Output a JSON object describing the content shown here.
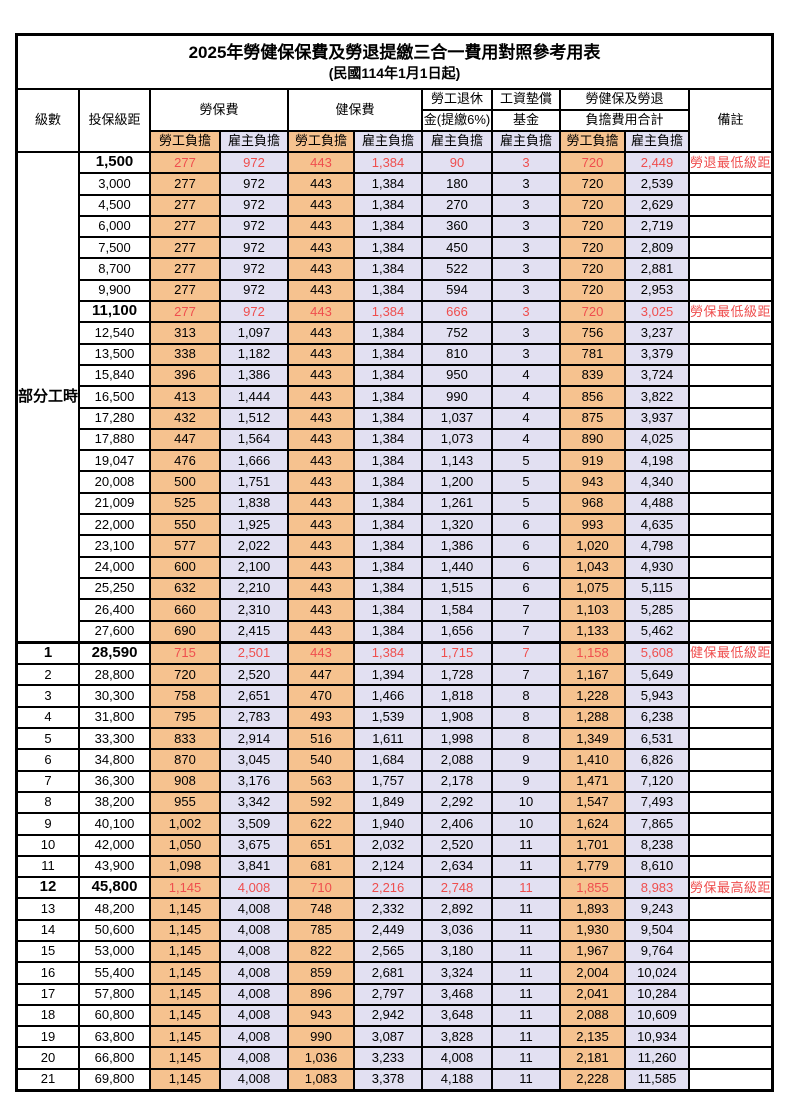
{
  "title": "2025年勞健保保費及勞退提繳三合一費用對照參考用表",
  "subtitle": "(民國114年1月1日起)",
  "colors": {
    "employee_bg": "#F6C28F",
    "employer_bg": "#E2E0F2",
    "highlight_text": "#EF4E4E",
    "border": "#000000",
    "background": "#FFFFFF"
  },
  "header": {
    "level": "級數",
    "bracket": "投保級距",
    "labor_fee": "勞保費",
    "health_fee": "健保費",
    "pension_line1": "勞工退休",
    "pension_line2": "金(提繳6%)",
    "wage_fund_line1": "工資墊償",
    "wage_fund_line2": "基金",
    "total_line1": "勞健保及勞退",
    "total_line2": "負擔費用合計",
    "note": "備註",
    "employee_share": "勞工負擔",
    "employer_share": "雇主負擔"
  },
  "part_time_label": "部分工時",
  "part_time_rowspan": 23,
  "table": {
    "rows": [
      {
        "level": "",
        "amount": "1,500",
        "v": [
          "277",
          "972",
          "443",
          "1,384",
          "90",
          "3",
          "720",
          "2,449"
        ],
        "note": "勞退最低級距",
        "hl": true
      },
      {
        "level": "",
        "amount": "3,000",
        "v": [
          "277",
          "972",
          "443",
          "1,384",
          "180",
          "3",
          "720",
          "2,539"
        ],
        "note": ""
      },
      {
        "level": "",
        "amount": "4,500",
        "v": [
          "277",
          "972",
          "443",
          "1,384",
          "270",
          "3",
          "720",
          "2,629"
        ],
        "note": ""
      },
      {
        "level": "",
        "amount": "6,000",
        "v": [
          "277",
          "972",
          "443",
          "1,384",
          "360",
          "3",
          "720",
          "2,719"
        ],
        "note": ""
      },
      {
        "level": "",
        "amount": "7,500",
        "v": [
          "277",
          "972",
          "443",
          "1,384",
          "450",
          "3",
          "720",
          "2,809"
        ],
        "note": ""
      },
      {
        "level": "",
        "amount": "8,700",
        "v": [
          "277",
          "972",
          "443",
          "1,384",
          "522",
          "3",
          "720",
          "2,881"
        ],
        "note": ""
      },
      {
        "level": "",
        "amount": "9,900",
        "v": [
          "277",
          "972",
          "443",
          "1,384",
          "594",
          "3",
          "720",
          "2,953"
        ],
        "note": ""
      },
      {
        "level": "",
        "amount": "11,100",
        "v": [
          "277",
          "972",
          "443",
          "1,384",
          "666",
          "3",
          "720",
          "3,025"
        ],
        "note": "勞保最低級距",
        "hl": true
      },
      {
        "level": "",
        "amount": "12,540",
        "v": [
          "313",
          "1,097",
          "443",
          "1,384",
          "752",
          "3",
          "756",
          "3,237"
        ],
        "note": ""
      },
      {
        "level": "",
        "amount": "13,500",
        "v": [
          "338",
          "1,182",
          "443",
          "1,384",
          "810",
          "3",
          "781",
          "3,379"
        ],
        "note": ""
      },
      {
        "level": "",
        "amount": "15,840",
        "v": [
          "396",
          "1,386",
          "443",
          "1,384",
          "950",
          "4",
          "839",
          "3,724"
        ],
        "note": ""
      },
      {
        "level": "",
        "amount": "16,500",
        "v": [
          "413",
          "1,444",
          "443",
          "1,384",
          "990",
          "4",
          "856",
          "3,822"
        ],
        "note": ""
      },
      {
        "level": "",
        "amount": "17,280",
        "v": [
          "432",
          "1,512",
          "443",
          "1,384",
          "1,037",
          "4",
          "875",
          "3,937"
        ],
        "note": ""
      },
      {
        "level": "",
        "amount": "17,880",
        "v": [
          "447",
          "1,564",
          "443",
          "1,384",
          "1,073",
          "4",
          "890",
          "4,025"
        ],
        "note": ""
      },
      {
        "level": "",
        "amount": "19,047",
        "v": [
          "476",
          "1,666",
          "443",
          "1,384",
          "1,143",
          "5",
          "919",
          "4,198"
        ],
        "note": ""
      },
      {
        "level": "",
        "amount": "20,008",
        "v": [
          "500",
          "1,751",
          "443",
          "1,384",
          "1,200",
          "5",
          "943",
          "4,340"
        ],
        "note": ""
      },
      {
        "level": "",
        "amount": "21,009",
        "v": [
          "525",
          "1,838",
          "443",
          "1,384",
          "1,261",
          "5",
          "968",
          "4,488"
        ],
        "note": ""
      },
      {
        "level": "",
        "amount": "22,000",
        "v": [
          "550",
          "1,925",
          "443",
          "1,384",
          "1,320",
          "6",
          "993",
          "4,635"
        ],
        "note": ""
      },
      {
        "level": "",
        "amount": "23,100",
        "v": [
          "577",
          "2,022",
          "443",
          "1,384",
          "1,386",
          "6",
          "1,020",
          "4,798"
        ],
        "note": ""
      },
      {
        "level": "",
        "amount": "24,000",
        "v": [
          "600",
          "2,100",
          "443",
          "1,384",
          "1,440",
          "6",
          "1,043",
          "4,930"
        ],
        "note": ""
      },
      {
        "level": "",
        "amount": "25,250",
        "v": [
          "632",
          "2,210",
          "443",
          "1,384",
          "1,515",
          "6",
          "1,075",
          "5,115"
        ],
        "note": ""
      },
      {
        "level": "",
        "amount": "26,400",
        "v": [
          "660",
          "2,310",
          "443",
          "1,384",
          "1,584",
          "7",
          "1,103",
          "5,285"
        ],
        "note": ""
      },
      {
        "level": "",
        "amount": "27,600",
        "v": [
          "690",
          "2,415",
          "443",
          "1,384",
          "1,656",
          "7",
          "1,133",
          "5,462"
        ],
        "note": ""
      },
      {
        "level": "1",
        "amount": "28,590",
        "v": [
          "715",
          "2,501",
          "443",
          "1,384",
          "1,715",
          "7",
          "1,158",
          "5,608"
        ],
        "note": "健保最低級距",
        "hl": true,
        "sect": true
      },
      {
        "level": "2",
        "amount": "28,800",
        "v": [
          "720",
          "2,520",
          "447",
          "1,394",
          "1,728",
          "7",
          "1,167",
          "5,649"
        ],
        "note": ""
      },
      {
        "level": "3",
        "amount": "30,300",
        "v": [
          "758",
          "2,651",
          "470",
          "1,466",
          "1,818",
          "8",
          "1,228",
          "5,943"
        ],
        "note": ""
      },
      {
        "level": "4",
        "amount": "31,800",
        "v": [
          "795",
          "2,783",
          "493",
          "1,539",
          "1,908",
          "8",
          "1,288",
          "6,238"
        ],
        "note": ""
      },
      {
        "level": "5",
        "amount": "33,300",
        "v": [
          "833",
          "2,914",
          "516",
          "1,611",
          "1,998",
          "8",
          "1,349",
          "6,531"
        ],
        "note": ""
      },
      {
        "level": "6",
        "amount": "34,800",
        "v": [
          "870",
          "3,045",
          "540",
          "1,684",
          "2,088",
          "9",
          "1,410",
          "6,826"
        ],
        "note": ""
      },
      {
        "level": "7",
        "amount": "36,300",
        "v": [
          "908",
          "3,176",
          "563",
          "1,757",
          "2,178",
          "9",
          "1,471",
          "7,120"
        ],
        "note": ""
      },
      {
        "level": "8",
        "amount": "38,200",
        "v": [
          "955",
          "3,342",
          "592",
          "1,849",
          "2,292",
          "10",
          "1,547",
          "7,493"
        ],
        "note": ""
      },
      {
        "level": "9",
        "amount": "40,100",
        "v": [
          "1,002",
          "3,509",
          "622",
          "1,940",
          "2,406",
          "10",
          "1,624",
          "7,865"
        ],
        "note": ""
      },
      {
        "level": "10",
        "amount": "42,000",
        "v": [
          "1,050",
          "3,675",
          "651",
          "2,032",
          "2,520",
          "11",
          "1,701",
          "8,238"
        ],
        "note": ""
      },
      {
        "level": "11",
        "amount": "43,900",
        "v": [
          "1,098",
          "3,841",
          "681",
          "2,124",
          "2,634",
          "11",
          "1,779",
          "8,610"
        ],
        "note": ""
      },
      {
        "level": "12",
        "amount": "45,800",
        "v": [
          "1,145",
          "4,008",
          "710",
          "2,216",
          "2,748",
          "11",
          "1,855",
          "8,983"
        ],
        "note": "勞保最高級距",
        "hl": true
      },
      {
        "level": "13",
        "amount": "48,200",
        "v": [
          "1,145",
          "4,008",
          "748",
          "2,332",
          "2,892",
          "11",
          "1,893",
          "9,243"
        ],
        "note": ""
      },
      {
        "level": "14",
        "amount": "50,600",
        "v": [
          "1,145",
          "4,008",
          "785",
          "2,449",
          "3,036",
          "11",
          "1,930",
          "9,504"
        ],
        "note": ""
      },
      {
        "level": "15",
        "amount": "53,000",
        "v": [
          "1,145",
          "4,008",
          "822",
          "2,565",
          "3,180",
          "11",
          "1,967",
          "9,764"
        ],
        "note": ""
      },
      {
        "level": "16",
        "amount": "55,400",
        "v": [
          "1,145",
          "4,008",
          "859",
          "2,681",
          "3,324",
          "11",
          "2,004",
          "10,024"
        ],
        "note": ""
      },
      {
        "level": "17",
        "amount": "57,800",
        "v": [
          "1,145",
          "4,008",
          "896",
          "2,797",
          "3,468",
          "11",
          "2,041",
          "10,284"
        ],
        "note": ""
      },
      {
        "level": "18",
        "amount": "60,800",
        "v": [
          "1,145",
          "4,008",
          "943",
          "2,942",
          "3,648",
          "11",
          "2,088",
          "10,609"
        ],
        "note": ""
      },
      {
        "level": "19",
        "amount": "63,800",
        "v": [
          "1,145",
          "4,008",
          "990",
          "3,087",
          "3,828",
          "11",
          "2,135",
          "10,934"
        ],
        "note": ""
      },
      {
        "level": "20",
        "amount": "66,800",
        "v": [
          "1,145",
          "4,008",
          "1,036",
          "3,233",
          "4,008",
          "11",
          "2,181",
          "11,260"
        ],
        "note": ""
      },
      {
        "level": "21",
        "amount": "69,800",
        "v": [
          "1,145",
          "4,008",
          "1,083",
          "3,378",
          "4,188",
          "11",
          "2,228",
          "11,585"
        ],
        "note": ""
      }
    ]
  }
}
